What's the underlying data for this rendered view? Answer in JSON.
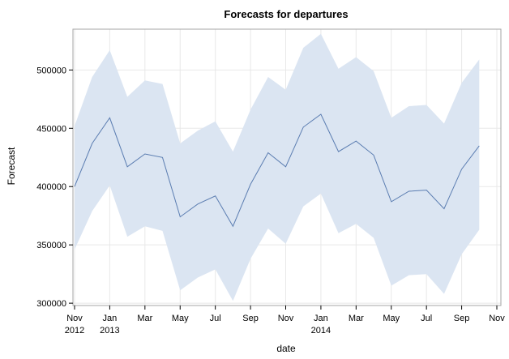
{
  "chart_data": {
    "type": "line",
    "title": "Forecasts for departures",
    "xlabel": "date",
    "ylabel": "Forecast",
    "ylim": [
      298000,
      535000
    ],
    "xlim": [
      "2012-11",
      "2014-11"
    ],
    "grid": true,
    "colors": {
      "line": "#5b7db1",
      "band": "#dbe5f2",
      "grid": "#e8e8e8",
      "frame": "#a6a6a6"
    },
    "x": [
      "2012-11",
      "2012-12",
      "2013-01",
      "2013-02",
      "2013-03",
      "2013-04",
      "2013-05",
      "2013-06",
      "2013-07",
      "2013-08",
      "2013-09",
      "2013-10",
      "2013-11",
      "2013-12",
      "2014-01",
      "2014-02",
      "2014-03",
      "2014-04",
      "2014-05",
      "2014-06",
      "2014-07",
      "2014-08",
      "2014-09",
      "2014-10"
    ],
    "series": [
      {
        "role": "forecast",
        "values": [
          400000,
          437000,
          459000,
          417000,
          428000,
          425000,
          374000,
          385000,
          392000,
          366000,
          402000,
          429000,
          417000,
          451000,
          462000,
          430000,
          439000,
          427000,
          387000,
          396000,
          397000,
          381000,
          415000,
          435000
        ]
      },
      {
        "role": "upper",
        "values": [
          452000,
          494000,
          517000,
          477000,
          491000,
          488000,
          437000,
          448000,
          456000,
          430000,
          466000,
          494000,
          483000,
          519000,
          531000,
          501000,
          511000,
          499000,
          459000,
          469000,
          470000,
          454000,
          489000,
          509000
        ]
      },
      {
        "role": "lower",
        "values": [
          346000,
          379000,
          401000,
          357000,
          366000,
          362000,
          311000,
          322000,
          329000,
          302000,
          338000,
          364000,
          351000,
          383000,
          394000,
          360000,
          368000,
          356000,
          315000,
          324000,
          325000,
          308000,
          342000,
          363000
        ]
      }
    ],
    "y_ticks": [
      {
        "value": 300000,
        "label": "300000"
      },
      {
        "value": 350000,
        "label": "350000"
      },
      {
        "value": 400000,
        "label": "400000"
      },
      {
        "value": 450000,
        "label": "450000"
      },
      {
        "value": 500000,
        "label": "500000"
      }
    ],
    "x_ticks": [
      {
        "date": "2012-11",
        "label": "Nov",
        "sublabel": "2012"
      },
      {
        "date": "2013-01",
        "label": "Jan",
        "sublabel": "2013"
      },
      {
        "date": "2013-03",
        "label": "Mar",
        "sublabel": ""
      },
      {
        "date": "2013-05",
        "label": "May",
        "sublabel": ""
      },
      {
        "date": "2013-07",
        "label": "Jul",
        "sublabel": ""
      },
      {
        "date": "2013-09",
        "label": "Sep",
        "sublabel": ""
      },
      {
        "date": "2013-11",
        "label": "Nov",
        "sublabel": ""
      },
      {
        "date": "2014-01",
        "label": "Jan",
        "sublabel": "2014"
      },
      {
        "date": "2014-03",
        "label": "Mar",
        "sublabel": ""
      },
      {
        "date": "2014-05",
        "label": "May",
        "sublabel": ""
      },
      {
        "date": "2014-07",
        "label": "Jul",
        "sublabel": ""
      },
      {
        "date": "2014-09",
        "label": "Sep",
        "sublabel": ""
      },
      {
        "date": "2014-11",
        "label": "Nov",
        "sublabel": ""
      }
    ]
  }
}
